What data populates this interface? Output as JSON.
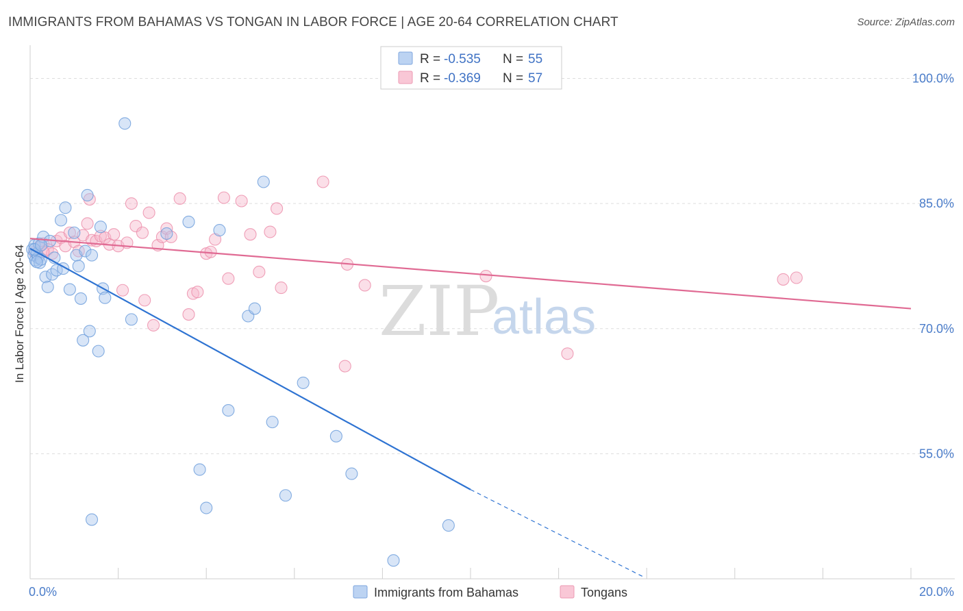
{
  "title": "IMMIGRANTS FROM BAHAMAS VS TONGAN IN LABOR FORCE | AGE 20-64 CORRELATION CHART",
  "source": "Source: ZipAtlas.com",
  "watermark": {
    "zip": "ZIP",
    "atlas": "atlas"
  },
  "colors": {
    "blue_fill": "#a9c6ee",
    "blue_stroke": "#6f9fdc",
    "blue_line": "#2e73d2",
    "pink_fill": "#f6b8cc",
    "pink_stroke": "#ec8fab",
    "pink_line": "#e06a93",
    "grid": "#dddddd",
    "tick_text": "#4a7cc9"
  },
  "legend": {
    "r_label": "R =",
    "n_label": "N =",
    "series": [
      {
        "r": "-0.535",
        "n": "55"
      },
      {
        "r": "-0.369",
        "n": "57"
      }
    ]
  },
  "chart_data": {
    "type": "scatter",
    "xlabel": "",
    "ylabel": "In Labor Force | Age 20-64",
    "xlim": [
      0,
      20
    ],
    "ylim": [
      40,
      103
    ],
    "x_tick_labels": [
      "0.0%",
      "20.0%"
    ],
    "y_ticks": [
      55,
      70,
      85,
      100
    ],
    "y_tick_labels": [
      "55.0%",
      "70.0%",
      "85.0%",
      "100.0%"
    ],
    "series": [
      {
        "name": "Immigrants from Bahamas",
        "points": [
          [
            0.05,
            79.5
          ],
          [
            0.08,
            78.8
          ],
          [
            0.1,
            80.0
          ],
          [
            0.12,
            78.2
          ],
          [
            0.15,
            79.0
          ],
          [
            0.18,
            78.5
          ],
          [
            0.2,
            80.2
          ],
          [
            0.22,
            77.9
          ],
          [
            0.25,
            78.3
          ],
          [
            0.3,
            81.0
          ],
          [
            0.35,
            76.2
          ],
          [
            0.4,
            75.0
          ],
          [
            0.45,
            80.5
          ],
          [
            0.5,
            76.5
          ],
          [
            0.55,
            78.5
          ],
          [
            0.6,
            77.0
          ],
          [
            0.7,
            83.0
          ],
          [
            0.75,
            77.2
          ],
          [
            0.8,
            84.5
          ],
          [
            0.9,
            74.7
          ],
          [
            1.0,
            81.5
          ],
          [
            1.05,
            78.8
          ],
          [
            1.1,
            77.5
          ],
          [
            1.15,
            73.6
          ],
          [
            1.2,
            68.6
          ],
          [
            1.25,
            79.3
          ],
          [
            1.3,
            86.0
          ],
          [
            1.35,
            69.7
          ],
          [
            1.4,
            78.8
          ],
          [
            1.55,
            67.3
          ],
          [
            1.6,
            82.2
          ],
          [
            1.65,
            74.8
          ],
          [
            1.7,
            73.7
          ],
          [
            2.15,
            94.6
          ],
          [
            2.3,
            71.1
          ],
          [
            3.1,
            81.4
          ],
          [
            3.6,
            82.8
          ],
          [
            4.3,
            81.8
          ],
          [
            4.5,
            60.2
          ],
          [
            4.95,
            71.5
          ],
          [
            5.1,
            72.4
          ],
          [
            5.3,
            87.6
          ],
          [
            5.5,
            58.8
          ],
          [
            5.8,
            50.0
          ],
          [
            6.2,
            63.5
          ],
          [
            6.95,
            57.1
          ],
          [
            7.3,
            52.6
          ],
          [
            8.25,
            42.2
          ],
          [
            9.5,
            46.4
          ],
          [
            1.4,
            47.1
          ],
          [
            4.0,
            48.5
          ],
          [
            3.85,
            53.1
          ],
          [
            0.1,
            79.5
          ],
          [
            0.15,
            78.0
          ],
          [
            0.25,
            80.0
          ]
        ]
      },
      {
        "name": "Tongans",
        "points": [
          [
            0.1,
            79.2
          ],
          [
            0.2,
            79.8
          ],
          [
            0.3,
            80.2
          ],
          [
            0.4,
            79.5
          ],
          [
            0.5,
            79.0
          ],
          [
            0.6,
            80.5
          ],
          [
            0.7,
            80.9
          ],
          [
            0.8,
            79.9
          ],
          [
            0.9,
            81.5
          ],
          [
            1.0,
            80.4
          ],
          [
            1.1,
            79.3
          ],
          [
            1.2,
            81.2
          ],
          [
            1.3,
            82.6
          ],
          [
            1.4,
            80.6
          ],
          [
            1.5,
            80.5
          ],
          [
            1.6,
            81.1
          ],
          [
            1.7,
            80.9
          ],
          [
            1.8,
            80.1
          ],
          [
            1.9,
            81.3
          ],
          [
            2.0,
            79.9
          ],
          [
            2.1,
            74.6
          ],
          [
            2.2,
            80.3
          ],
          [
            2.3,
            85.0
          ],
          [
            2.4,
            82.3
          ],
          [
            2.55,
            81.5
          ],
          [
            2.6,
            73.4
          ],
          [
            2.7,
            83.9
          ],
          [
            2.8,
            70.4
          ],
          [
            2.9,
            80.0
          ],
          [
            3.0,
            81.0
          ],
          [
            3.1,
            82.0
          ],
          [
            3.2,
            81.0
          ],
          [
            3.4,
            85.6
          ],
          [
            3.6,
            71.7
          ],
          [
            3.7,
            74.2
          ],
          [
            3.8,
            74.4
          ],
          [
            4.0,
            79.0
          ],
          [
            4.1,
            79.2
          ],
          [
            4.2,
            80.7
          ],
          [
            4.4,
            85.7
          ],
          [
            4.5,
            76.0
          ],
          [
            4.8,
            85.3
          ],
          [
            5.0,
            81.3
          ],
          [
            5.2,
            76.8
          ],
          [
            5.45,
            81.6
          ],
          [
            5.6,
            84.4
          ],
          [
            5.7,
            74.9
          ],
          [
            6.65,
            87.6
          ],
          [
            7.15,
            65.5
          ],
          [
            7.2,
            77.7
          ],
          [
            7.6,
            75.2
          ],
          [
            10.35,
            76.3
          ],
          [
            12.2,
            67.0
          ],
          [
            17.1,
            75.9
          ],
          [
            17.4,
            76.1
          ],
          [
            1.35,
            85.5
          ],
          [
            0.3,
            79.2
          ]
        ]
      }
    ],
    "trendlines": [
      {
        "series": "Immigrants from Bahamas",
        "x0": 0,
        "y0": 79.6,
        "x1": 10.0,
        "y1": 50.7,
        "dashed_to_x": 13.9,
        "dashed_to_y": 40.3
      },
      {
        "series": "Tongans",
        "x0": 0,
        "y0": 80.8,
        "x1": 20.0,
        "y1": 72.4
      }
    ]
  }
}
